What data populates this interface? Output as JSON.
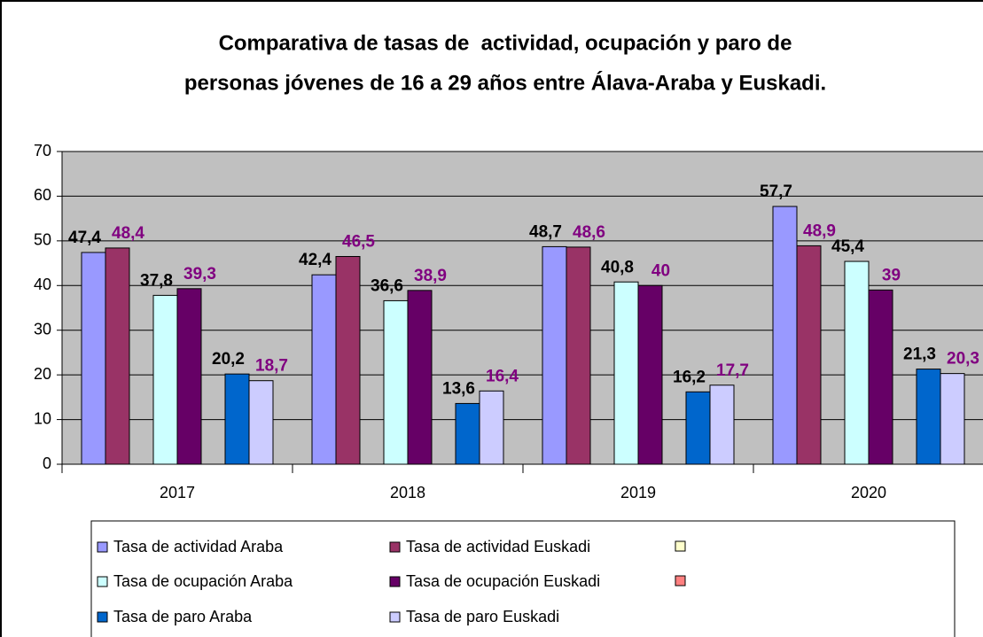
{
  "chart_data": {
    "type": "bar",
    "title": [
      "Comparativa de tasas de  actividad, ocupación y paro de",
      "personas jóvenes de 16 a 29 años entre Álava-Araba y Euskadi."
    ],
    "categories": [
      "2017",
      "2018",
      "2019",
      "2020"
    ],
    "ylim": [
      0,
      70
    ],
    "yticks": [
      0,
      10,
      20,
      30,
      40,
      50,
      60,
      70
    ],
    "grid": true,
    "series": [
      {
        "name": "Tasa de actividad Araba",
        "color": "#9999FF",
        "label_color": "#000000",
        "values": [
          47.4,
          42.4,
          48.7,
          57.7
        ],
        "value_labels": [
          "47,4",
          "42,4",
          "48,7",
          "57,7"
        ]
      },
      {
        "name": "Tasa de actividad Euskadi",
        "color": "#993366",
        "label_color": "#800080",
        "values": [
          48.4,
          46.5,
          48.6,
          48.9
        ],
        "value_labels": [
          "48,4",
          "46,5",
          "48,6",
          "48,9"
        ]
      },
      {
        "name": "Tasa de ocupación Araba",
        "color": "#CCFFFF",
        "label_color": "#000000",
        "values": [
          37.8,
          36.6,
          40.8,
          45.4
        ],
        "value_labels": [
          "37,8",
          "36,6",
          "40,8",
          "45,4"
        ]
      },
      {
        "name": "Tasa de ocupación Euskadi",
        "color": "#660066",
        "label_color": "#800080",
        "values": [
          39.3,
          38.9,
          40,
          39
        ],
        "value_labels": [
          "39,3",
          "38,9",
          "40",
          "39"
        ]
      },
      {
        "name": "Tasa de paro Araba",
        "color": "#0066CC",
        "label_color": "#000000",
        "values": [
          20.2,
          13.6,
          16.2,
          21.3
        ],
        "value_labels": [
          "20,2",
          "13,6",
          "16,2",
          "21,3"
        ]
      },
      {
        "name": "Tasa de paro Euskadi",
        "color": "#CCCCFF",
        "label_color": "#800080",
        "values": [
          18.7,
          16.4,
          17.7,
          20.3
        ],
        "value_labels": [
          "18,7",
          "16,4",
          "17,7",
          "20,3"
        ]
      }
    ]
  }
}
